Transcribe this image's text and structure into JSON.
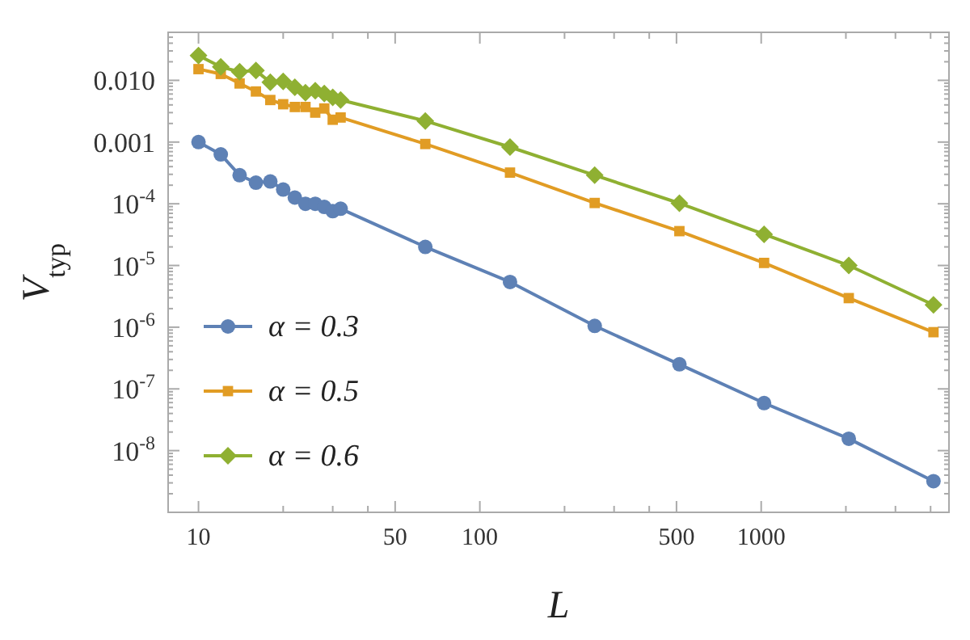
{
  "chart_data": {
    "type": "line",
    "xlabel": "L",
    "ylabel": "V$_{typ}$",
    "log": "xy",
    "legend": "bottom left",
    "grid": false,
    "xlim": [
      7.8,
      4650
    ],
    "ylim": [
      1e-09,
      0.06
    ],
    "xticks": [
      10,
      {
        "value": 20,
        "label": null
      },
      {
        "value": 30,
        "label": null
      },
      {
        "value": 40,
        "label": null
      },
      50,
      100,
      {
        "value": 200,
        "label": null
      },
      {
        "value": 300,
        "label": null
      },
      {
        "value": 400,
        "label": null
      },
      500,
      1000,
      {
        "value": 2000,
        "label": null
      },
      {
        "value": 3000,
        "label": null
      },
      {
        "value": 4000,
        "label": null
      }
    ],
    "yticks": [
      {
        "value": 0.01,
        "label": "0.010"
      },
      {
        "value": 0.001,
        "label": "0.001"
      },
      {
        "value": 0.0001,
        "label": "10$^{-4}$"
      },
      {
        "value": 1e-05,
        "label": "10$^{-5}$"
      },
      {
        "value": 1e-06,
        "label": "10$^{-6}$"
      },
      {
        "value": 1e-07,
        "label": "10$^{-7}$"
      },
      {
        "value": 1e-08,
        "label": "10$^{-8}$"
      }
    ],
    "x": [
      10,
      12,
      14,
      16,
      18,
      20,
      22,
      24,
      26,
      28,
      30,
      32,
      64,
      128,
      256,
      512,
      1024,
      2048,
      4096
    ],
    "series": [
      {
        "name": "α = 0.3",
        "color": "#5e81b5",
        "marker": "circle",
        "values": [
          0.001,
          0.00063,
          0.00029,
          0.00022,
          0.00023,
          0.00017,
          0.000126,
          0.0001,
          0.0001,
          8.9e-05,
          7.6e-05,
          8.3e-05,
          2e-05,
          5.4e-06,
          1.05e-06,
          2.5e-07,
          5.9e-08,
          1.56e-08,
          3.2e-09
        ]
      },
      {
        "name": "α = 0.5",
        "color": "#e19c24",
        "marker": "square",
        "values": [
          0.0152,
          0.0127,
          0.0089,
          0.0066,
          0.0048,
          0.0041,
          0.0037,
          0.0037,
          0.003,
          0.0035,
          0.0023,
          0.0025,
          0.00093,
          0.00032,
          0.000103,
          3.6e-05,
          1.1e-05,
          2.96e-06,
          8.3e-07
        ]
      },
      {
        "name": "α = 0.6",
        "color": "#8fb032",
        "marker": "diamond",
        "values": [
          0.0253,
          0.0165,
          0.0138,
          0.0144,
          0.0093,
          0.0096,
          0.0077,
          0.0063,
          0.0068,
          0.0061,
          0.0053,
          0.0048,
          0.0022,
          0.00083,
          0.00029,
          0.000102,
          3.2e-05,
          1e-05,
          2.3e-06
        ]
      }
    ]
  }
}
